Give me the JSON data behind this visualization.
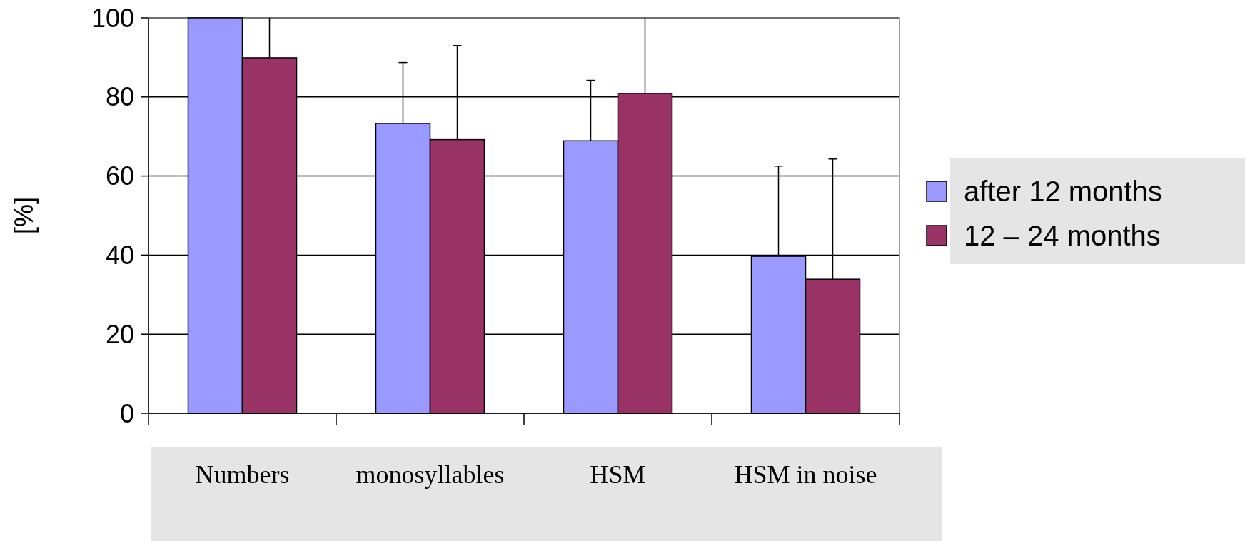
{
  "chart_data": {
    "type": "bar",
    "ylabel": "[%]",
    "categories": [
      "Numbers",
      "monosyllables",
      "HSM",
      "HSM in noise"
    ],
    "series": [
      {
        "name": "after 12 months",
        "color": "#9999ff",
        "values": [
          100,
          73.3,
          68.9,
          39.7
        ],
        "errors": [
          null,
          [
            73.3,
            88.7
          ],
          [
            68.9,
            84.2
          ],
          [
            39.7,
            62.5
          ]
        ]
      },
      {
        "name": "12 – 24 months",
        "color": "#993366",
        "values": [
          89.9,
          69.2,
          80.9,
          33.9
        ],
        "errors": [
          [
            89.9,
            100
          ],
          [
            69.2,
            93.0
          ],
          [
            80.9,
            100
          ],
          [
            33.9,
            64.3
          ]
        ]
      }
    ],
    "ylim": [
      0,
      100
    ],
    "yticks": [
      0,
      20,
      40,
      60,
      80,
      100
    ],
    "grid": "y",
    "legend": "right"
  }
}
